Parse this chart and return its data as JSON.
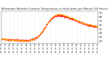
{
  "title": "Milwaukee Weather Outdoor Temperature vs Heat Index per Minute (24 Hours)",
  "title_fontsize": 2.8,
  "bg_color": "#ffffff",
  "grid_color": "#aaaaaa",
  "line_color_temp": "#ff0000",
  "line_color_heat": "#ffaa00",
  "ylim": [
    15,
    95
  ],
  "yticks": [
    20,
    30,
    40,
    50,
    60,
    70,
    80,
    90
  ],
  "ytick_fontsize": 2.8,
  "xtick_fontsize": 1.8,
  "temp_data": [
    25,
    24,
    23,
    22,
    22,
    21,
    21,
    22,
    25,
    32,
    45,
    62,
    75,
    82,
    83,
    81,
    78,
    74,
    70,
    66,
    62,
    59,
    57,
    55
  ],
  "heat_data": [
    25,
    24,
    23,
    22,
    22,
    21,
    21,
    22,
    25,
    32,
    45,
    62,
    76,
    84,
    86,
    84,
    80,
    76,
    71,
    67,
    63,
    60,
    58,
    56
  ],
  "vline_pos": 6,
  "vline_color": "#888888"
}
